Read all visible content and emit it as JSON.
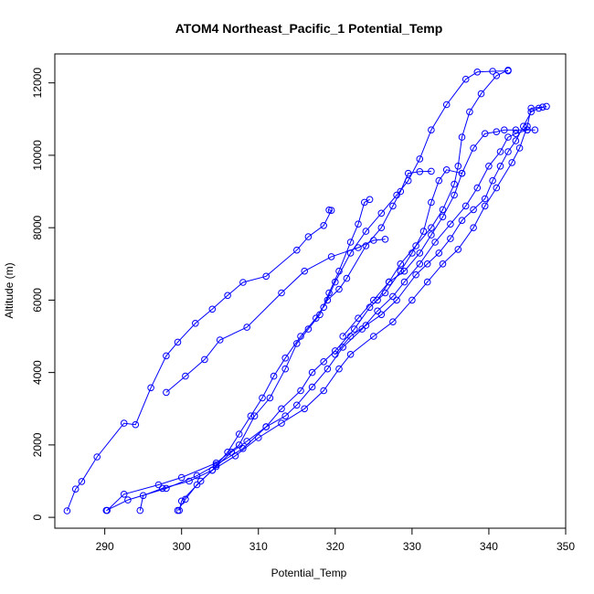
{
  "chart_data": {
    "type": "line",
    "title": "ATOM4 Northeast_Pacific_1 Potential_Temp",
    "xlabel": "Potential_Temp",
    "ylabel": "Altitude (m)",
    "xlim": [
      283.5,
      350
    ],
    "ylim": [
      -300,
      12800
    ],
    "xticks": [
      290,
      300,
      310,
      320,
      330,
      340,
      350
    ],
    "yticks": [
      0,
      2000,
      4000,
      6000,
      8000,
      10000,
      12000
    ],
    "color": "#0000ff",
    "grid": false,
    "series": [
      {
        "points": [
          [
            285.1,
            180
          ],
          [
            286.2,
            780
          ],
          [
            287.0,
            990
          ],
          [
            289.0,
            1670
          ],
          [
            292.5,
            2600
          ],
          [
            294.0,
            2560
          ],
          [
            296.0,
            3580
          ],
          [
            298.0,
            4460
          ],
          [
            299.5,
            4840
          ],
          [
            301.8,
            5360
          ],
          [
            304.0,
            5750
          ],
          [
            306.0,
            6130
          ],
          [
            308.0,
            6490
          ],
          [
            311.0,
            6660
          ],
          [
            315.0,
            7380
          ],
          [
            316.5,
            7750
          ],
          [
            318.5,
            8060
          ],
          [
            319.5,
            8480
          ],
          [
            319.2,
            8490
          ]
        ]
      },
      {
        "points": [
          [
            298.0,
            3450
          ],
          [
            300.5,
            3900
          ],
          [
            303.0,
            4360
          ],
          [
            305.0,
            4900
          ],
          [
            308.5,
            5250
          ],
          [
            313.0,
            6200
          ],
          [
            316.0,
            6800
          ],
          [
            319.5,
            7200
          ],
          [
            323.0,
            7450
          ],
          [
            325.0,
            7650
          ],
          [
            326.5,
            7680
          ]
        ]
      },
      {
        "points": [
          [
            290.3,
            190
          ],
          [
            292.5,
            640
          ],
          [
            297.0,
            900
          ],
          [
            300.0,
            1100
          ],
          [
            304.5,
            1500
          ],
          [
            307.5,
            2000
          ],
          [
            309.5,
            2800
          ],
          [
            311.5,
            3300
          ],
          [
            313.5,
            4100
          ],
          [
            315.0,
            4800
          ],
          [
            316.5,
            5200
          ],
          [
            318.0,
            5600
          ],
          [
            319.2,
            6200
          ],
          [
            320.5,
            6800
          ],
          [
            322.0,
            7600
          ],
          [
            323.0,
            8100
          ],
          [
            323.8,
            8700
          ],
          [
            324.5,
            8780
          ]
        ]
      },
      {
        "points": [
          [
            290.2,
            190
          ],
          [
            293.0,
            480
          ],
          [
            298.0,
            800
          ],
          [
            302.0,
            1150
          ],
          [
            304.5,
            1450
          ],
          [
            308.0,
            1900
          ],
          [
            311.0,
            2500
          ],
          [
            313.0,
            3000
          ],
          [
            315.5,
            3500
          ],
          [
            317.0,
            4000
          ],
          [
            318.5,
            4300
          ],
          [
            320.0,
            4600
          ],
          [
            322.5,
            5200
          ],
          [
            324.5,
            5800
          ],
          [
            326.5,
            6200
          ],
          [
            328.5,
            6800
          ],
          [
            330.0,
            7300
          ],
          [
            331.5,
            7900
          ],
          [
            332.5,
            8700
          ],
          [
            333.5,
            9300
          ],
          [
            334.5,
            9600
          ],
          [
            336.5,
            9500
          ]
        ]
      },
      {
        "points": [
          [
            299.5,
            190
          ],
          [
            300.5,
            500
          ],
          [
            302.0,
            900
          ],
          [
            304.0,
            1300
          ],
          [
            306.0,
            1800
          ],
          [
            307.5,
            2300
          ],
          [
            309.0,
            2800
          ],
          [
            310.5,
            3300
          ],
          [
            312.0,
            3900
          ],
          [
            313.5,
            4400
          ],
          [
            315.5,
            5000
          ],
          [
            317.5,
            5500
          ],
          [
            319.0,
            6000
          ],
          [
            320.5,
            6300
          ],
          [
            321.5,
            6600
          ],
          [
            324.0,
            7500
          ],
          [
            326.0,
            8000
          ],
          [
            327.5,
            8600
          ],
          [
            328.5,
            9000
          ],
          [
            329.5,
            9500
          ],
          [
            331.0,
            9550
          ],
          [
            332.5,
            9560
          ]
        ]
      },
      {
        "points": [
          [
            299.7,
            190
          ],
          [
            300.0,
            450
          ],
          [
            302.5,
            1000
          ],
          [
            304.5,
            1400
          ],
          [
            306.5,
            1800
          ],
          [
            308.5,
            2100
          ],
          [
            311.0,
            2500
          ],
          [
            313.5,
            2800
          ],
          [
            315.0,
            3100
          ],
          [
            317.0,
            3600
          ],
          [
            319.0,
            4100
          ],
          [
            321.0,
            4700
          ],
          [
            323.5,
            5200
          ],
          [
            325.5,
            5700
          ],
          [
            327.5,
            6100
          ],
          [
            329.0,
            6500
          ],
          [
            331.0,
            7000
          ],
          [
            333.0,
            7600
          ],
          [
            335.0,
            8100
          ],
          [
            337.0,
            8600
          ],
          [
            338.5,
            9100
          ],
          [
            340.0,
            9700
          ],
          [
            341.5,
            10100
          ],
          [
            342.5,
            10500
          ],
          [
            343.5,
            10600
          ],
          [
            345.0,
            10700
          ],
          [
            346.0,
            10700
          ]
        ]
      },
      {
        "points": [
          [
            294.6,
            190
          ],
          [
            295.0,
            600
          ],
          [
            297.5,
            800
          ],
          [
            301.0,
            1000
          ],
          [
            304.0,
            1300
          ],
          [
            307.0,
            1700
          ],
          [
            310.0,
            2200
          ],
          [
            313.0,
            2600
          ],
          [
            316.0,
            3000
          ],
          [
            318.5,
            3500
          ],
          [
            320.5,
            4100
          ],
          [
            322.0,
            4500
          ],
          [
            325.0,
            5000
          ],
          [
            327.5,
            5400
          ],
          [
            330.0,
            6000
          ],
          [
            332.0,
            6500
          ],
          [
            334.0,
            7000
          ],
          [
            336.0,
            7400
          ],
          [
            338.0,
            8000
          ],
          [
            339.5,
            8600
          ],
          [
            341.0,
            9100
          ],
          [
            343.0,
            9800
          ],
          [
            344.0,
            10200
          ],
          [
            345.0,
            10800
          ],
          [
            345.5,
            11300
          ],
          [
            347.0,
            11330
          ]
        ]
      },
      {
        "points": [
          [
            320.0,
            4500
          ],
          [
            322.0,
            5000
          ],
          [
            324.0,
            5300
          ],
          [
            326.0,
            5600
          ],
          [
            328.0,
            6000
          ],
          [
            330.5,
            6700
          ],
          [
            332.0,
            7000
          ],
          [
            333.5,
            7300
          ],
          [
            335.0,
            7700
          ],
          [
            336.5,
            8200
          ],
          [
            338.0,
            8500
          ],
          [
            339.5,
            8800
          ],
          [
            340.5,
            9300
          ],
          [
            341.5,
            9700
          ],
          [
            342.5,
            10100
          ],
          [
            343.5,
            10400
          ],
          [
            344.5,
            10800
          ],
          [
            345.5,
            11200
          ],
          [
            346.5,
            11300
          ],
          [
            347.5,
            11350
          ]
        ]
      },
      {
        "points": [
          [
            321.0,
            5000
          ],
          [
            323.0,
            5500
          ],
          [
            325.0,
            6000
          ],
          [
            327.0,
            6500
          ],
          [
            329.0,
            6800
          ],
          [
            331.0,
            7300
          ],
          [
            332.5,
            7800
          ],
          [
            334.0,
            8300
          ],
          [
            335.5,
            8900
          ],
          [
            336.5,
            9500
          ],
          [
            338.0,
            10200
          ],
          [
            339.5,
            10600
          ],
          [
            341.0,
            10650
          ],
          [
            342.0,
            10700
          ],
          [
            343.5,
            10700
          ],
          [
            345.0,
            10700
          ]
        ]
      },
      {
        "points": [
          [
            318.5,
            5800
          ],
          [
            320.0,
            6500
          ],
          [
            322.0,
            7300
          ],
          [
            324.0,
            7900
          ],
          [
            326.0,
            8400
          ],
          [
            328.0,
            8900
          ],
          [
            329.5,
            9300
          ],
          [
            331.0,
            9900
          ],
          [
            332.5,
            10700
          ],
          [
            334.5,
            11400
          ],
          [
            337.0,
            12100
          ],
          [
            338.5,
            12300
          ],
          [
            340.5,
            12320
          ],
          [
            342.5,
            12330
          ]
        ]
      },
      {
        "points": [
          [
            325.5,
            6000
          ],
          [
            327.0,
            6500
          ],
          [
            328.5,
            7000
          ],
          [
            330.5,
            7500
          ],
          [
            332.5,
            8000
          ],
          [
            334.0,
            8500
          ],
          [
            335.5,
            9200
          ],
          [
            336.0,
            9700
          ],
          [
            336.5,
            10500
          ],
          [
            337.5,
            11200
          ],
          [
            339.0,
            11700
          ],
          [
            341.0,
            12200
          ],
          [
            342.5,
            12350
          ]
        ]
      }
    ]
  }
}
